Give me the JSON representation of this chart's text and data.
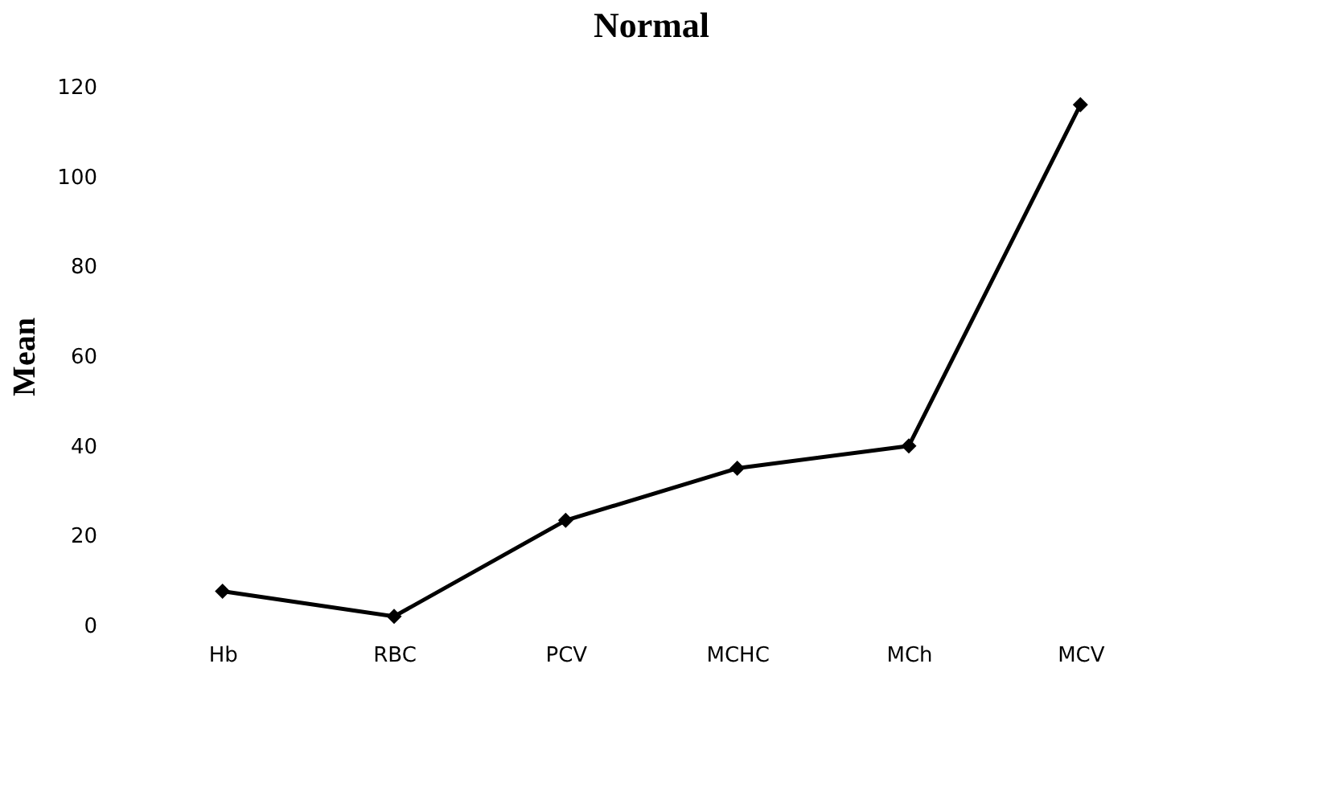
{
  "chart_data": {
    "type": "line",
    "title": "Normal",
    "ylabel": "Mean",
    "categories": [
      "Hb",
      "RBC",
      "PCV",
      "MCHC",
      "MCh",
      "MCV"
    ],
    "series": [
      {
        "color": "#000000",
        "values": [
          7.6,
          2,
          23.4,
          35,
          40,
          116
        ]
      }
    ],
    "ylim": [
      0,
      120
    ],
    "yticks": [
      0,
      20,
      40,
      60,
      80,
      100,
      120
    ],
    "grid": false,
    "marker": "diamond",
    "line_style": "solid"
  }
}
